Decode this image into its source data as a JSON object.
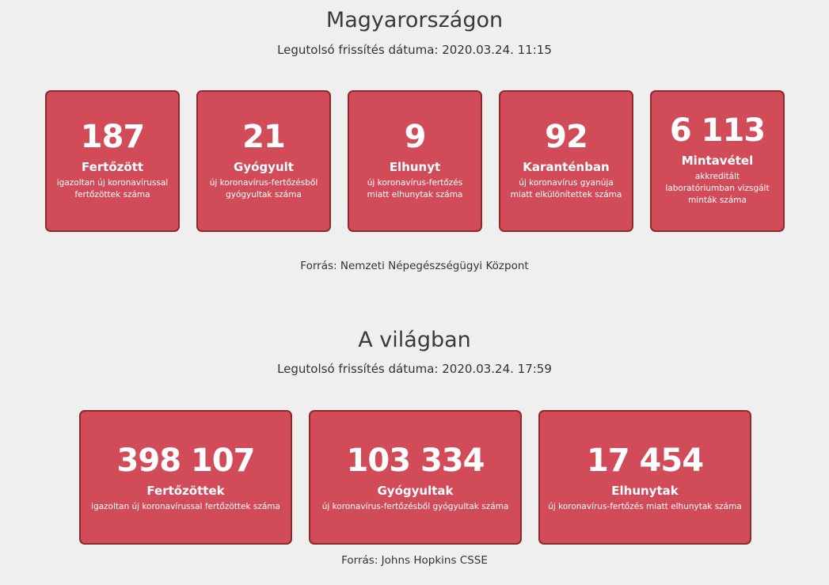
{
  "hungary": {
    "title": "Magyarországon",
    "updated": "Legutolsó frissítés dátuma: 2020.03.24. 11:15",
    "cards": [
      {
        "value": "187",
        "label": "Fertőzött",
        "desc": "igazoltan új koronavírussal fertőzöttek száma"
      },
      {
        "value": "21",
        "label": "Gyógyult",
        "desc": "új koronavírus-fertőzésből gyógyultak száma"
      },
      {
        "value": "9",
        "label": "Elhunyt",
        "desc": "új koronavírus-fertőzés miatt elhunytak száma"
      },
      {
        "value": "92",
        "label": "Karanténban",
        "desc": "új koronavírus gyanúja miatt elkülönítettek száma"
      },
      {
        "value": "6 113",
        "label": "Mintavétel",
        "desc": "akkreditált laboratóriumban vizsgált minták száma"
      }
    ],
    "source": "Forrás: Nemzeti Népegészségügyi Központ"
  },
  "world": {
    "title": "A világban",
    "updated": "Legutolsó frissítés dátuma: 2020.03.24. 17:59",
    "cards": [
      {
        "value": "398 107",
        "label": "Fertőzöttek",
        "desc": "igazoltan új koronavírussal fertőzöttek száma"
      },
      {
        "value": "103 334",
        "label": "Gyógyultak",
        "desc": "új koronavírus-fertőzésből gyógyultak száma"
      },
      {
        "value": "17 454",
        "label": "Elhunytak",
        "desc": "új koronavírus-fertőzés miatt elhunytak száma"
      }
    ],
    "source": "Forrás: Johns Hopkins CSSE"
  },
  "colors": {
    "card": "#d14b59",
    "border": "#8e2a2c",
    "background": "#efefef"
  }
}
